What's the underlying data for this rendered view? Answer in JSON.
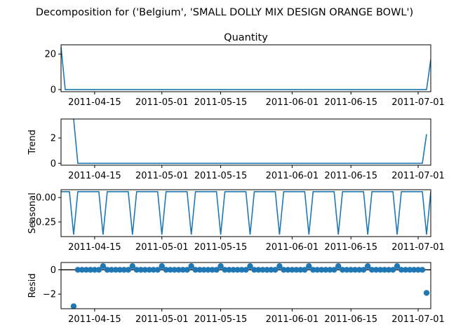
{
  "figure": {
    "suptitle": "Decomposition for ('Belgium', 'SMALL DOLLY MIX DESIGN ORANGE BOWL')"
  },
  "colors": {
    "line": "#1f77b4",
    "axis": "#000000"
  },
  "chart_data": [
    {
      "type": "line",
      "title": "Quantity",
      "ylabel": "",
      "xlim": [
        "2011-04-07",
        "2011-07-04"
      ],
      "ylim": [
        -1.2,
        25.2
      ],
      "yticks": [
        "0",
        "20"
      ],
      "ytick_values": [
        0,
        20
      ],
      "xtick_labels": [
        "2011-04-15",
        "2011-05-01",
        "2011-05-15",
        "2011-06-01",
        "2011-06-15",
        "2011-07-01"
      ],
      "xtick_dates": [
        "2011-04-15",
        "2011-05-01",
        "2011-05-15",
        "2011-06-01",
        "2011-06-15",
        "2011-07-01"
      ],
      "series": [
        {
          "x": [
            "2011-04-07",
            "2011-04-08",
            "2011-07-03",
            "2011-07-04"
          ],
          "values": [
            24,
            0,
            0,
            17
          ]
        }
      ]
    },
    {
      "type": "line",
      "title": "",
      "ylabel": "Trend",
      "xlim": [
        "2011-04-07",
        "2011-07-04"
      ],
      "ylim": [
        -0.15,
        3.5
      ],
      "yticks": [
        "0",
        "2"
      ],
      "ytick_values": [
        0,
        2
      ],
      "xtick_labels": [
        "2011-04-15",
        "2011-05-01",
        "2011-05-15",
        "2011-06-01",
        "2011-06-15",
        "2011-07-01"
      ],
      "xtick_dates": [
        "2011-04-15",
        "2011-05-01",
        "2011-05-15",
        "2011-06-01",
        "2011-06-15",
        "2011-07-01"
      ],
      "series": [
        {
          "x": [
            "2011-04-10",
            "2011-04-11",
            "2011-07-02",
            "2011-07-03"
          ],
          "values": [
            3.5,
            0,
            0,
            2.3
          ]
        }
      ]
    },
    {
      "type": "line",
      "title": "",
      "ylabel": "Seasonal",
      "xlim": [
        "2011-04-07",
        "2011-07-04"
      ],
      "ylim": [
        -0.4,
        0.08
      ],
      "yticks": [
        "0.00",
        "−0.25"
      ],
      "ytick_values": [
        0.0,
        -0.25
      ],
      "xtick_labels": [
        "2011-04-15",
        "2011-05-01",
        "2011-05-15",
        "2011-06-01",
        "2011-06-15",
        "2011-07-01"
      ],
      "xtick_dates": [
        "2011-04-15",
        "2011-05-01",
        "2011-05-15",
        "2011-06-01",
        "2011-06-15",
        "2011-07-01"
      ],
      "period_days": 7,
      "dip_day_of_period": 3,
      "high_value": 0.06,
      "dip_value": -0.38
    },
    {
      "type": "scatter",
      "title": "",
      "ylabel": "Resid",
      "xlim": [
        "2011-04-07",
        "2011-07-04"
      ],
      "ylim": [
        -3.2,
        0.6
      ],
      "yticks": [
        "0",
        "−2"
      ],
      "ytick_values": [
        0,
        -2
      ],
      "xtick_labels": [
        "2011-04-15",
        "2011-05-01",
        "2011-05-15",
        "2011-06-01",
        "2011-06-15",
        "2011-07-01"
      ],
      "xtick_dates": [
        "2011-04-15",
        "2011-05-01",
        "2011-05-15",
        "2011-06-01",
        "2011-06-15",
        "2011-07-01"
      ],
      "zero_line": true,
      "points": [
        [
          "2011-04-10",
          -3.0
        ],
        [
          "2011-04-11",
          0
        ],
        [
          "2011-04-12",
          0
        ],
        [
          "2011-04-13",
          0
        ],
        [
          "2011-04-14",
          0
        ],
        [
          "2011-04-15",
          0
        ],
        [
          "2011-04-16",
          0
        ],
        [
          "2011-04-17",
          0.3
        ],
        [
          "2011-04-18",
          0
        ],
        [
          "2011-04-19",
          0
        ],
        [
          "2011-04-20",
          0
        ],
        [
          "2011-04-21",
          0
        ],
        [
          "2011-04-22",
          0
        ],
        [
          "2011-04-23",
          0
        ],
        [
          "2011-04-24",
          0.3
        ],
        [
          "2011-04-25",
          0
        ],
        [
          "2011-04-26",
          0
        ],
        [
          "2011-04-27",
          0
        ],
        [
          "2011-04-28",
          0
        ],
        [
          "2011-04-29",
          0
        ],
        [
          "2011-04-30",
          0
        ],
        [
          "2011-05-01",
          0.3
        ],
        [
          "2011-05-02",
          0
        ],
        [
          "2011-05-03",
          0
        ],
        [
          "2011-05-04",
          0
        ],
        [
          "2011-05-05",
          0
        ],
        [
          "2011-05-06",
          0
        ],
        [
          "2011-05-07",
          0
        ],
        [
          "2011-05-08",
          0.3
        ],
        [
          "2011-05-09",
          0
        ],
        [
          "2011-05-10",
          0
        ],
        [
          "2011-05-11",
          0
        ],
        [
          "2011-05-12",
          0
        ],
        [
          "2011-05-13",
          0
        ],
        [
          "2011-05-14",
          0
        ],
        [
          "2011-05-15",
          0.3
        ],
        [
          "2011-05-16",
          0
        ],
        [
          "2011-05-17",
          0
        ],
        [
          "2011-05-18",
          0
        ],
        [
          "2011-05-19",
          0
        ],
        [
          "2011-05-20",
          0
        ],
        [
          "2011-05-21",
          0
        ],
        [
          "2011-05-22",
          0.3
        ],
        [
          "2011-05-23",
          0
        ],
        [
          "2011-05-24",
          0
        ],
        [
          "2011-05-25",
          0
        ],
        [
          "2011-05-26",
          0
        ],
        [
          "2011-05-27",
          0
        ],
        [
          "2011-05-28",
          0
        ],
        [
          "2011-05-29",
          0.3
        ],
        [
          "2011-05-30",
          0
        ],
        [
          "2011-05-31",
          0
        ],
        [
          "2011-06-01",
          0
        ],
        [
          "2011-06-02",
          0
        ],
        [
          "2011-06-03",
          0
        ],
        [
          "2011-06-04",
          0
        ],
        [
          "2011-06-05",
          0.3
        ],
        [
          "2011-06-06",
          0
        ],
        [
          "2011-06-07",
          0
        ],
        [
          "2011-06-08",
          0
        ],
        [
          "2011-06-09",
          0
        ],
        [
          "2011-06-10",
          0
        ],
        [
          "2011-06-11",
          0
        ],
        [
          "2011-06-12",
          0.3
        ],
        [
          "2011-06-13",
          0
        ],
        [
          "2011-06-14",
          0
        ],
        [
          "2011-06-15",
          0
        ],
        [
          "2011-06-16",
          0
        ],
        [
          "2011-06-17",
          0
        ],
        [
          "2011-06-18",
          0
        ],
        [
          "2011-06-19",
          0.3
        ],
        [
          "2011-06-20",
          0
        ],
        [
          "2011-06-21",
          0
        ],
        [
          "2011-06-22",
          0
        ],
        [
          "2011-06-23",
          0
        ],
        [
          "2011-06-24",
          0
        ],
        [
          "2011-06-25",
          0
        ],
        [
          "2011-06-26",
          0.3
        ],
        [
          "2011-06-27",
          0
        ],
        [
          "2011-06-28",
          0
        ],
        [
          "2011-06-29",
          0
        ],
        [
          "2011-06-30",
          0
        ],
        [
          "2011-07-01",
          0
        ],
        [
          "2011-07-02",
          0
        ],
        [
          "2011-07-03",
          -1.9
        ]
      ]
    }
  ]
}
